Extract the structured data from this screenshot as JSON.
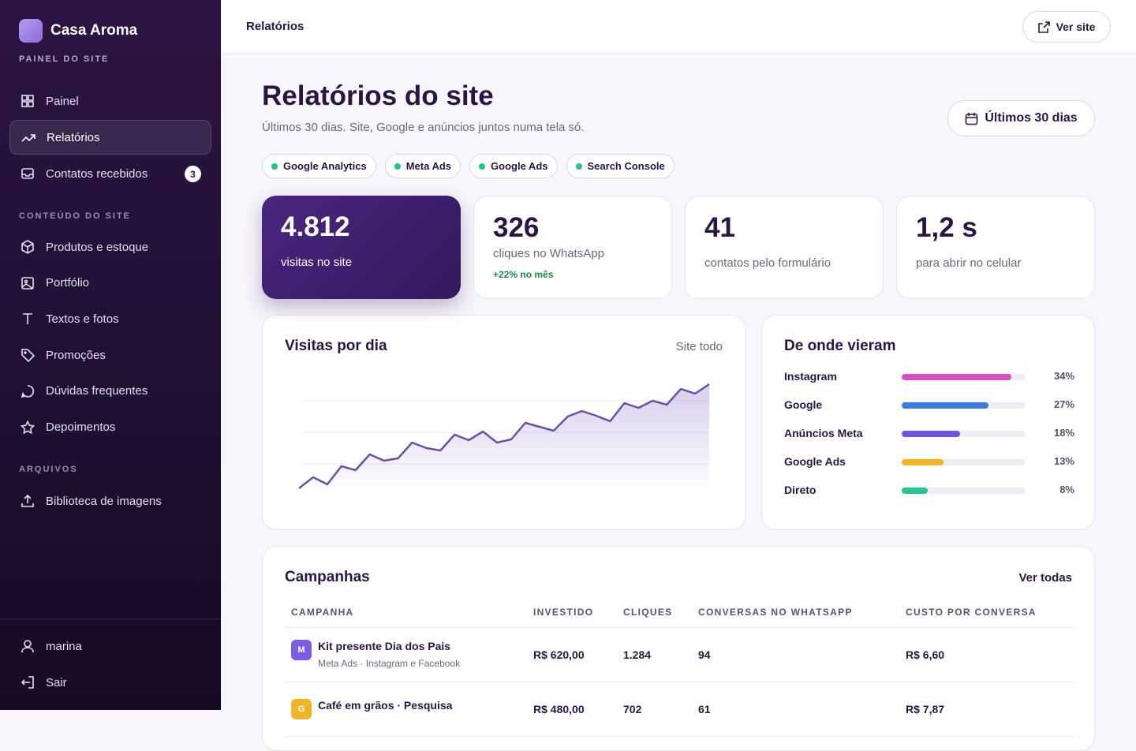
{
  "brand": {
    "name": "Casa Aroma",
    "subtitle": "PAINEL DO SITE"
  },
  "nav": {
    "main": [
      {
        "label": "Painel"
      },
      {
        "label": "Relatórios"
      },
      {
        "label": "Contatos recebidos",
        "badge": "3"
      }
    ],
    "sections": [
      {
        "title": "CONTEÚDO DO SITE",
        "items": [
          "Produtos e estoque",
          "Portfólio",
          "Textos e fotos",
          "Promoções",
          "Dúvidas frequentes",
          "Depoimentos"
        ]
      },
      {
        "title": "ARQUIVOS",
        "items": [
          "Biblioteca de imagens"
        ]
      }
    ]
  },
  "user": {
    "name": "marina",
    "logout": "Sair"
  },
  "topbar": {
    "breadcrumb": "Relatórios",
    "view_site": "Ver site"
  },
  "header": {
    "title": "Relatórios do site",
    "subtitle": "Últimos 30 dias. Site, Google e anúncios juntos numa tela só.",
    "range": "Últimos 30 dias"
  },
  "sources": [
    "Google Analytics",
    "Meta Ads",
    "Google Ads",
    "Search Console"
  ],
  "stats": [
    {
      "value": "4.812",
      "label": "visitas no site"
    },
    {
      "value": "326",
      "label": "cliques no WhatsApp",
      "change": "+22% no mês"
    },
    {
      "value": "41",
      "label": "contatos pelo formulário"
    },
    {
      "value": "1,2 s",
      "label": "para abrir no celular"
    }
  ],
  "visits_chart": {
    "type": "line",
    "title": "Visitas por dia",
    "filter": "Site todo",
    "color": "#6b4fa8",
    "values": [
      7,
      21,
      12,
      35,
      30,
      50,
      42,
      45,
      65,
      58,
      55,
      75,
      68,
      79,
      65,
      69,
      90,
      85,
      80,
      98,
      105,
      99,
      92,
      115,
      109,
      118,
      113,
      133,
      127,
      139
    ]
  },
  "sources_chart": {
    "type": "bar",
    "title": "De onde vieram",
    "categories": [
      "Instagram",
      "Google",
      "Anúncios Meta",
      "Google Ads",
      "Direto"
    ],
    "values": [
      34,
      27,
      18,
      13,
      8
    ],
    "value_labels": [
      "34%",
      "27%",
      "18%",
      "13%",
      "8%"
    ],
    "colors": [
      "#d94fbf",
      "#3b7be6",
      "#6e55e0",
      "#f0b429",
      "#22c58b"
    ]
  },
  "campaigns": {
    "title": "Campanhas",
    "link": "Ver todas",
    "columns": [
      "CAMPANHA",
      "INVESTIDO",
      "CLIQUES",
      "CONVERSAS NO WHATSAPP",
      "CUSTO POR CONVERSA"
    ],
    "rows": [
      {
        "initial": "M",
        "color": "#7c5ce6",
        "name": "Kit presente Dia dos Pais",
        "detail": "Meta Ads · Instagram e Facebook",
        "cells": [
          "R$ 620,00",
          "1.284",
          "94",
          "R$ 6,60"
        ]
      },
      {
        "initial": "G",
        "color": "#f0b429",
        "name": "Café em grãos · Pesquisa",
        "cells": [
          "R$ 480,00",
          "702",
          "61",
          "R$ 7,87"
        ]
      }
    ]
  }
}
